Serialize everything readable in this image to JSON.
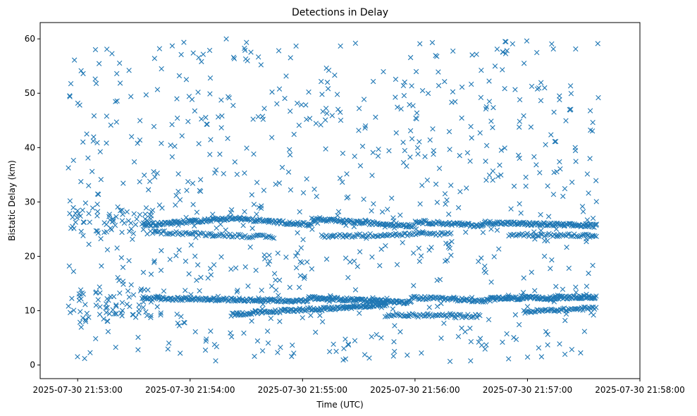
{
  "chart_data": {
    "type": "scatter",
    "title": "Detections in Delay",
    "xlabel": "Time (UTC)",
    "ylabel": "Bistatic Delay (km)",
    "marker": "x",
    "color": "#1f77b4",
    "grid": false,
    "x_range_seconds_after_21_52_40": [
      0,
      320
    ],
    "xlim_labels": [
      "2025-07-30 21:52:40",
      "2025-07-30 21:58:00"
    ],
    "ylim": [
      -2.5,
      63
    ],
    "xticks": [
      {
        "label": "2025-07-30 21:53:00",
        "t": 20
      },
      {
        "label": "2025-07-30 21:54:00",
        "t": 80
      },
      {
        "label": "2025-07-30 21:55:00",
        "t": 140
      },
      {
        "label": "2025-07-30 21:56:00",
        "t": 200
      },
      {
        "label": "2025-07-30 21:57:00",
        "t": 260
      },
      {
        "label": "2025-07-30 21:58:00",
        "t": 320
      }
    ],
    "yticks": [
      0,
      10,
      20,
      30,
      40,
      50,
      60
    ],
    "data_time_span": [
      "2025-07-30 21:52:55",
      "2025-07-30 21:57:53"
    ],
    "bands": [
      {
        "t0": 55,
        "t1": 108,
        "y0": 12.3,
        "y1": 12.0,
        "step": 0.55
      },
      {
        "t0": 108,
        "t1": 143,
        "y0": 12.0,
        "y1": 11.8,
        "step": 0.55
      },
      {
        "t0": 143,
        "t1": 198,
        "y0": 12.4,
        "y1": 11.5,
        "step": 0.45
      },
      {
        "t0": 198,
        "t1": 240,
        "y0": 12.4,
        "y1": 11.8,
        "step": 0.6
      },
      {
        "t0": 240,
        "t1": 297,
        "y0": 12.2,
        "y1": 12.5,
        "step": 0.45
      },
      {
        "t0": 102,
        "t1": 148,
        "y0": 9.3,
        "y1": 10.4,
        "step": 0.6
      },
      {
        "t0": 148,
        "t1": 185,
        "y0": 10.2,
        "y1": 11.2,
        "step": 0.5
      },
      {
        "t0": 185,
        "t1": 235,
        "y0": 9.2,
        "y1": 9.0,
        "step": 0.8
      },
      {
        "t0": 258,
        "t1": 297,
        "y0": 9.8,
        "y1": 10.5,
        "step": 0.7
      },
      {
        "t0": 56,
        "t1": 102,
        "y0": 25.8,
        "y1": 27.0,
        "step": 0.55
      },
      {
        "t0": 102,
        "t1": 145,
        "y0": 27.0,
        "y1": 25.8,
        "step": 0.6
      },
      {
        "t0": 145,
        "t1": 200,
        "y0": 26.8,
        "y1": 25.6,
        "step": 0.55
      },
      {
        "t0": 200,
        "t1": 237,
        "y0": 26.4,
        "y1": 25.6,
        "step": 0.6
      },
      {
        "t0": 237,
        "t1": 297,
        "y0": 26.2,
        "y1": 25.6,
        "step": 0.5
      },
      {
        "t0": 60,
        "t1": 125,
        "y0": 24.5,
        "y1": 23.5,
        "step": 0.9
      },
      {
        "t0": 150,
        "t1": 220,
        "y0": 23.7,
        "y1": 24.2,
        "step": 0.9
      },
      {
        "t0": 250,
        "t1": 297,
        "y0": 24.0,
        "y1": 23.8,
        "step": 0.9
      }
    ],
    "random_points": 780
  }
}
